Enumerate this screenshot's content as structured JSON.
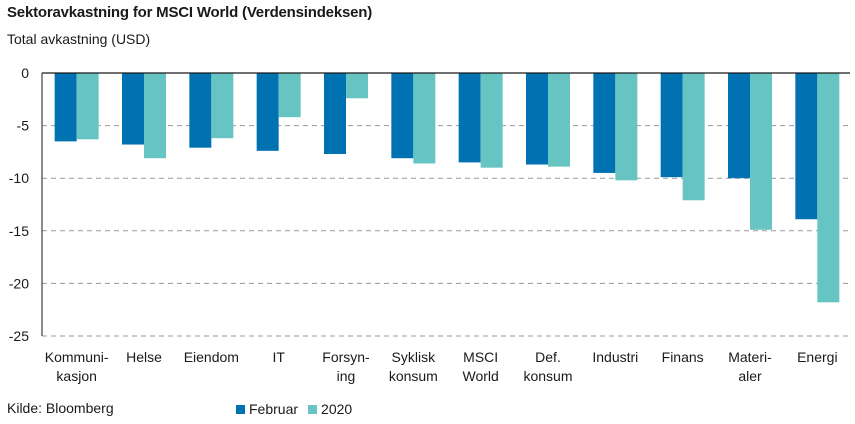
{
  "chart_data": {
    "type": "bar",
    "title": "Sektoravkastning for MSCI World (Verdensindeksen)",
    "subtitle": "Total avkastning (USD)",
    "source": "Kilde: Bloomberg",
    "categories": [
      [
        "Kommuni-",
        "kasjon"
      ],
      [
        "Helse"
      ],
      [
        "Eiendom"
      ],
      [
        "IT"
      ],
      [
        "Forsyn-",
        "ing"
      ],
      [
        "Syklisk",
        "konsum"
      ],
      [
        "MSCI",
        "World"
      ],
      [
        "Def.",
        "konsum"
      ],
      [
        "Industri"
      ],
      [
        "Finans"
      ],
      [
        "Materi-",
        "aler"
      ],
      [
        "Energi"
      ]
    ],
    "series": [
      {
        "name": "Februar",
        "color": "#0072b2",
        "values": [
          -6.5,
          -6.8,
          -7.1,
          -7.4,
          -7.7,
          -8.1,
          -8.5,
          -8.7,
          -9.5,
          -9.9,
          -10.0,
          -13.9
        ]
      },
      {
        "name": "2020",
        "color": "#66c5c2",
        "values": [
          -6.3,
          -8.1,
          -6.2,
          -4.2,
          -2.4,
          -8.6,
          -9.0,
          -8.9,
          -10.2,
          -12.1,
          -14.9,
          -21.8
        ]
      }
    ],
    "ylim": [
      -25,
      0
    ],
    "yticks": [
      0,
      -5,
      -10,
      -15,
      -20,
      -25
    ],
    "grid": true,
    "legend_position": "bottom"
  }
}
